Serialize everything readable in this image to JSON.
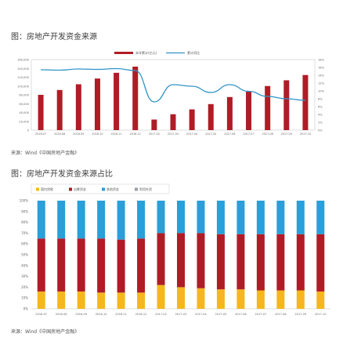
{
  "chart1_title": "图：房地产开发资金来源",
  "chart2_title": "图：房地产开发资金来源占比",
  "source1": "来源：Wind《中国房地产金融》",
  "source2": "来源：Wind《中国房地产金融》",
  "chart_data": [
    {
      "type": "bar",
      "title": "图：房地产开发资金来源",
      "categories": [
        "2016-07",
        "2016-08",
        "2016-09",
        "2016-10",
        "2016-11",
        "2016-12",
        "2017-02",
        "2017-03",
        "2017-04",
        "2017-05",
        "2017-06",
        "2017-07",
        "2017-08",
        "2017-09",
        "2017-10"
      ],
      "series": [
        {
          "name": "本年累计(亿元)",
          "kind": "bar",
          "axis": "left",
          "color": "#b01c26",
          "values": [
            80000,
            91000,
            104000,
            117000,
            130000,
            144000,
            24000,
            36000,
            47000,
            59000,
            75000,
            87000,
            100000,
            113000,
            125000
          ]
        },
        {
          "name": "累计同比",
          "kind": "line",
          "axis": "right",
          "color": "#2f94c8",
          "values": [
            0.154,
            0.153,
            0.156,
            0.155,
            0.157,
            0.152,
            0.072,
            0.116,
            0.112,
            0.096,
            0.116,
            0.099,
            0.086,
            0.08,
            0.076
          ]
        }
      ],
      "ylim_left": [
        0,
        160000
      ],
      "left_ticks": [
        "0",
        "20,000",
        "40,000",
        "60,000",
        "80,000",
        "100,000",
        "120,000",
        "140,000",
        "160,000"
      ],
      "ylim_right": [
        0,
        0.18
      ],
      "right_ticks": [
        "0%",
        "2%",
        "4%",
        "6%",
        "8%",
        "10%",
        "12%",
        "14%",
        "16%",
        "18%"
      ],
      "legend_position": "top-center",
      "grid": false
    },
    {
      "type": "bar",
      "stacked": true,
      "title": "图：房地产开发资金来源占比",
      "categories": [
        "2016-07",
        "2016-08",
        "2016-09",
        "2016-10",
        "2016-11",
        "2016-12",
        "2017-02",
        "2017-03",
        "2017-04",
        "2017-05",
        "2017-06",
        "2017-07",
        "2017-08",
        "2017-09",
        "2017-10"
      ],
      "series": [
        {
          "name": "国内贷款",
          "color": "#f4b71e",
          "values": [
            16,
            16,
            16,
            15,
            15,
            15,
            22,
            20,
            19,
            18,
            18,
            17,
            17,
            17,
            16
          ]
        },
        {
          "name": "自筹资金",
          "color": "#b01c26",
          "values": [
            49,
            49,
            49,
            50,
            49,
            50,
            48,
            50,
            51,
            51,
            51,
            52,
            52,
            52,
            53
          ]
        },
        {
          "name": "其他资金",
          "color": "#2a9fd8",
          "values": [
            35,
            35,
            35,
            35,
            36,
            35,
            30,
            30,
            30,
            31,
            31,
            31,
            31,
            31,
            31
          ]
        },
        {
          "name": "利用外资",
          "color": "#9aa0a6",
          "values": [
            0,
            0,
            0,
            0,
            0,
            0,
            0,
            0,
            0,
            0,
            0,
            0,
            0,
            0,
            0
          ]
        }
      ],
      "ylim": [
        0,
        100
      ],
      "y_ticks": [
        "0%",
        "10%",
        "20%",
        "30%",
        "40%",
        "50%",
        "60%",
        "70%",
        "80%",
        "90%",
        "100%"
      ],
      "legend_position": "top-left",
      "grid": false
    }
  ]
}
